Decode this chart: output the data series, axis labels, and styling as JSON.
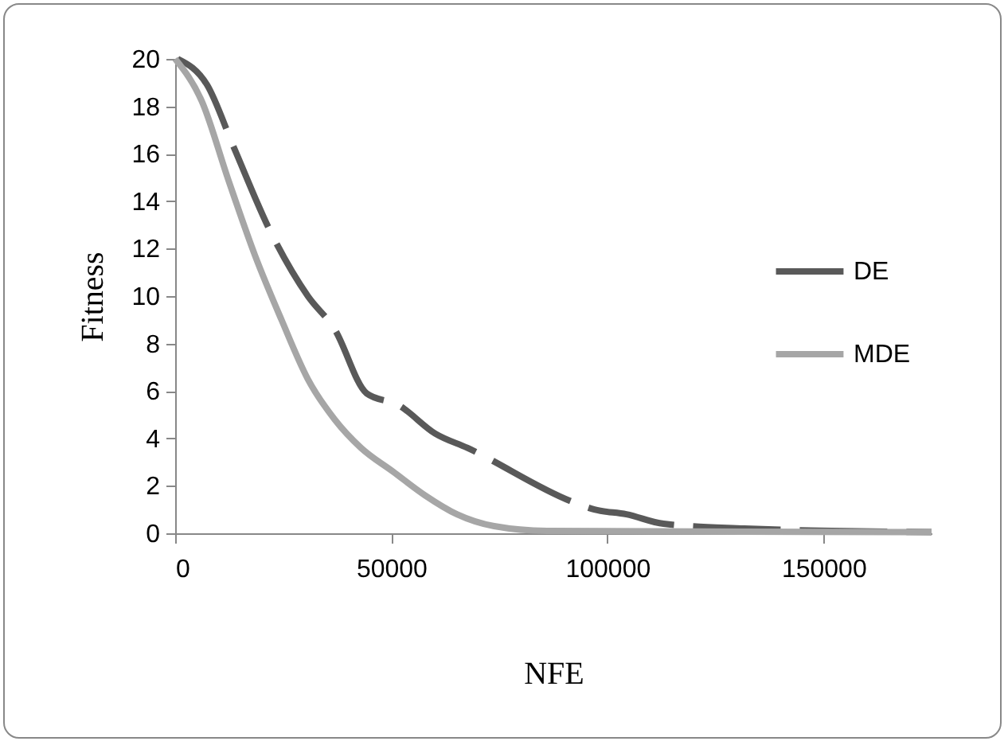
{
  "chart_data": {
    "type": "line",
    "xlabel": "NFE",
    "ylabel": "Fitness",
    "xlim": [
      0,
      175000
    ],
    "xticks": [
      0,
      50000,
      100000,
      150000
    ],
    "ylim": [
      0,
      20
    ],
    "yticks": [
      0,
      2,
      4,
      6,
      8,
      10,
      12,
      14,
      16,
      18,
      20
    ],
    "grid": false,
    "legend": "right",
    "marker": "none",
    "series": [
      {
        "name": "DE",
        "color": "#595959",
        "line_style": "dashed",
        "x": [
          600,
          7400,
          13500,
          22100,
          30700,
          36900,
          44300,
          51700,
          60200,
          67600,
          92300,
          97000,
          104400,
          113000,
          131700,
          152000,
          175000
        ],
        "values": [
          20,
          18.9,
          16.3,
          12.7,
          10.0,
          8.6,
          5.9,
          5.4,
          4.2,
          3.6,
          1.3,
          1.0,
          0.8,
          0.4,
          0.2,
          0.1,
          0.05
        ]
      },
      {
        "name": "MDE",
        "color": "#a6a6a6",
        "line_style": "solid",
        "x": [
          0,
          6200,
          12300,
          18500,
          24600,
          30700,
          36900,
          43000,
          50400,
          57800,
          65200,
          73800,
          86000,
          175000
        ],
        "values": [
          20,
          18.2,
          14.9,
          11.7,
          9.0,
          6.5,
          4.8,
          3.6,
          2.6,
          1.6,
          0.8,
          0.3,
          0.1,
          0.05
        ]
      }
    ]
  }
}
